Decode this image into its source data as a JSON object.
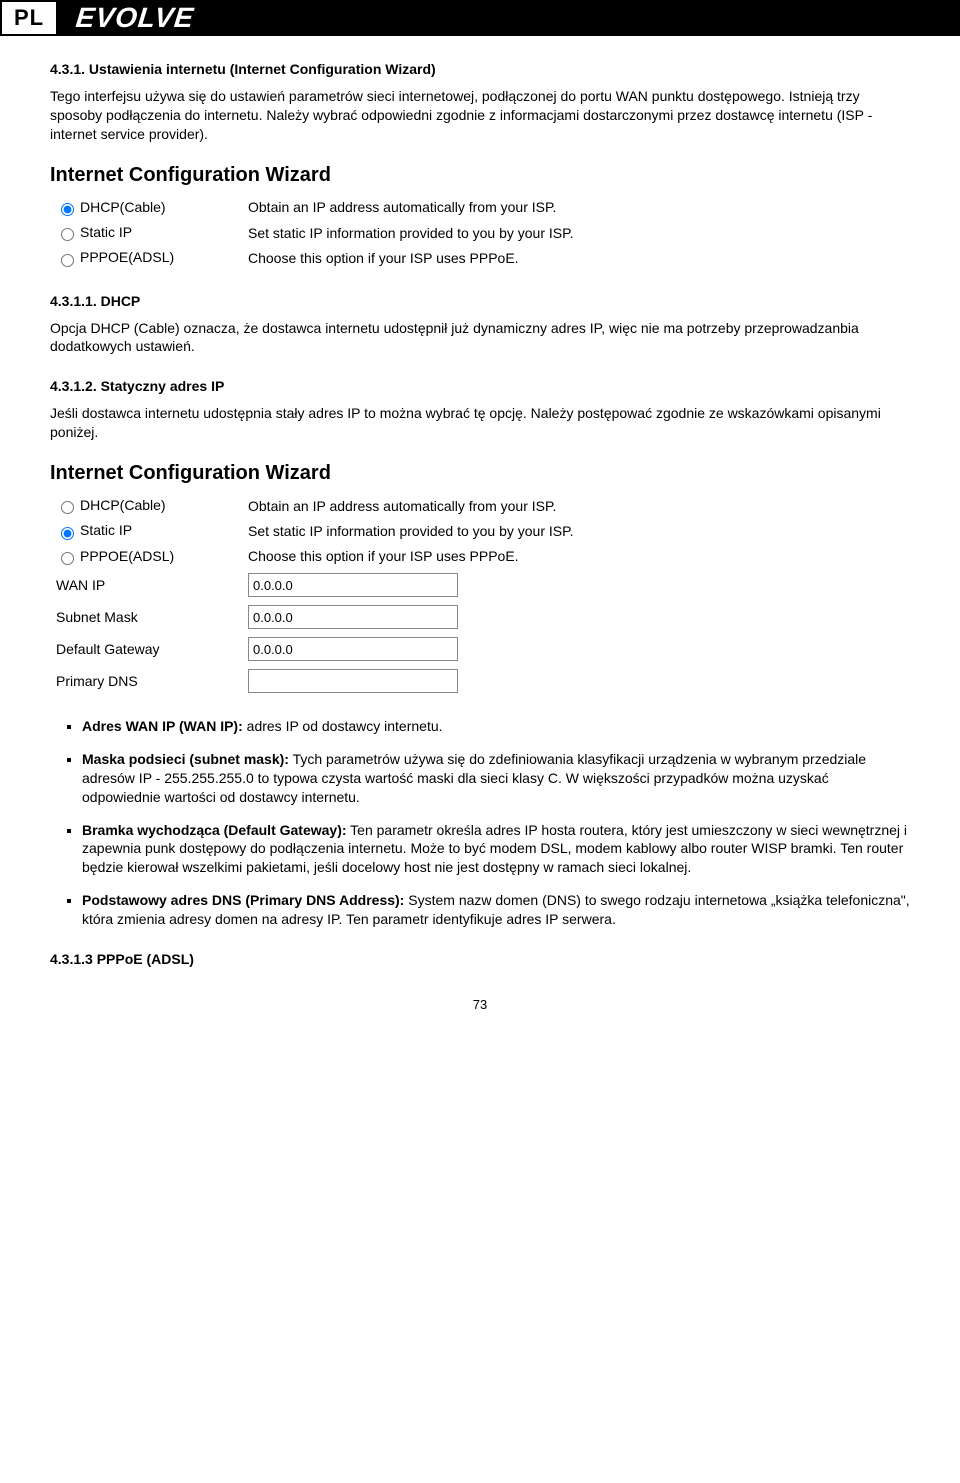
{
  "header": {
    "tag": "PL",
    "logo": "EVOLVE"
  },
  "s1": {
    "heading": "4.3.1. Ustawienia internetu (Internet Configuration Wizard)",
    "p1": "Tego interfejsu używa się do ustawień parametrów sieci internetowej, podłączonej do portu WAN punktu dostępowego. Istnieją trzy sposoby podłączenia do internetu. Należy wybrać odpowiedni zgodnie z informacjami dostarczonymi przez dostawcę internetu (ISP - internet service provider)."
  },
  "wizard1": {
    "title": "Internet Configuration Wizard",
    "rows": [
      {
        "name": "DHCP(Cable)",
        "desc": "Obtain an IP address automatically from your ISP.",
        "checked": true
      },
      {
        "name": "Static IP",
        "desc": "Set static IP information provided to you by your ISP.",
        "checked": false
      },
      {
        "name": "PPPOE(ADSL)",
        "desc": "Choose this option if your ISP uses PPPoE.",
        "checked": false
      }
    ]
  },
  "s2": {
    "heading": "4.3.1.1. DHCP",
    "p1": "Opcja DHCP (Cable) oznacza, że dostawca internetu udostępnił już dynamiczny adres IP, więc nie ma potrzeby przeprowadzanbia dodatkowych ustawień."
  },
  "s3": {
    "heading": "4.3.1.2. Statyczny adres IP",
    "p1": "Jeśli dostawca internetu udostępnia stały adres IP to można wybrać tę opcję. Należy postępować zgodnie ze wskazówkami opisanymi poniżej."
  },
  "wizard2": {
    "title": "Internet Configuration Wizard",
    "radios": [
      {
        "name": "DHCP(Cable)",
        "desc": "Obtain an IP address automatically from your ISP.",
        "checked": false
      },
      {
        "name": "Static IP",
        "desc": "Set static IP information provided to you by your ISP.",
        "checked": true
      },
      {
        "name": "PPPOE(ADSL)",
        "desc": "Choose this option if your ISP uses PPPoE.",
        "checked": false
      }
    ],
    "fields": [
      {
        "label": "WAN IP",
        "value": "0.0.0.0"
      },
      {
        "label": "Subnet Mask",
        "value": "0.0.0.0"
      },
      {
        "label": "Default Gateway",
        "value": "0.0.0.0"
      },
      {
        "label": "Primary DNS",
        "value": ""
      }
    ]
  },
  "bullets": [
    {
      "b": "Adres WAN IP (WAN IP):",
      "t": " adres IP od dostawcy internetu."
    },
    {
      "b": "Maska podsieci (subnet mask):",
      "t": " Tych parametrów używa się do zdefiniowania klasyfikacji urządzenia w wybranym przedziale adresów IP  - 255.255.255.0 to typowa czysta wartość maski dla sieci klasy C. W większości przypadków można uzyskać odpowiednie wartości od dostawcy internetu."
    },
    {
      "b": "Bramka wychodząca (Default Gateway):",
      "t": " Ten parametr określa adres IP hosta routera, który jest umieszczony w sieci wewnętrznej i zapewnia punk dostępowy do podłączenia internetu. Może to być modem DSL, modem kablowy albo router WISP bramki. Ten router będzie kierował wszelkimi pakietami, jeśli docelowy host nie jest dostępny w ramach sieci lokalnej."
    },
    {
      "b": "Podstawowy adres DNS (Primary DNS Address):",
      "t": " System nazw domen (DNS) to swego rodzaju internetowa „książka telefoniczna\", która zmienia adresy domen na adresy IP. Ten parametr identyfikuje adres IP serwera."
    }
  ],
  "s4": {
    "heading": "4.3.1.3 PPPoE (ADSL)"
  },
  "page": "73"
}
